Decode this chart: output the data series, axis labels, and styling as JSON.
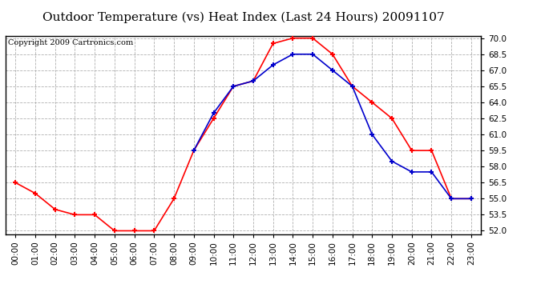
{
  "title": "Outdoor Temperature (vs) Heat Index (Last 24 Hours) 20091107",
  "copyright_text": "Copyright 2009 Cartronics.com",
  "hours": [
    "00:00",
    "01:00",
    "02:00",
    "03:00",
    "04:00",
    "05:00",
    "06:00",
    "07:00",
    "08:00",
    "09:00",
    "10:00",
    "11:00",
    "12:00",
    "13:00",
    "14:00",
    "15:00",
    "16:00",
    "17:00",
    "18:00",
    "19:00",
    "20:00",
    "21:00",
    "22:00",
    "23:00"
  ],
  "temp": [
    56.5,
    55.5,
    54.0,
    53.5,
    53.5,
    52.0,
    52.0,
    52.0,
    55.0,
    59.5,
    62.5,
    65.5,
    66.0,
    69.5,
    70.0,
    70.0,
    68.5,
    65.5,
    64.0,
    62.5,
    59.5,
    59.5,
    55.0,
    55.0
  ],
  "heat_index": [
    null,
    null,
    null,
    null,
    null,
    null,
    null,
    null,
    null,
    59.5,
    63.0,
    65.5,
    66.0,
    67.5,
    68.5,
    68.5,
    67.0,
    65.5,
    61.0,
    58.5,
    57.5,
    57.5,
    55.0,
    55.0
  ],
  "temp_color": "#ff0000",
  "heat_index_color": "#0000cc",
  "ylim_min": 52.0,
  "ylim_max": 70.0,
  "ytick_step": 1.5,
  "background_color": "#ffffff",
  "grid_color": "#b0b0b0",
  "title_fontsize": 11,
  "copyright_fontsize": 7,
  "tick_fontsize": 7.5
}
